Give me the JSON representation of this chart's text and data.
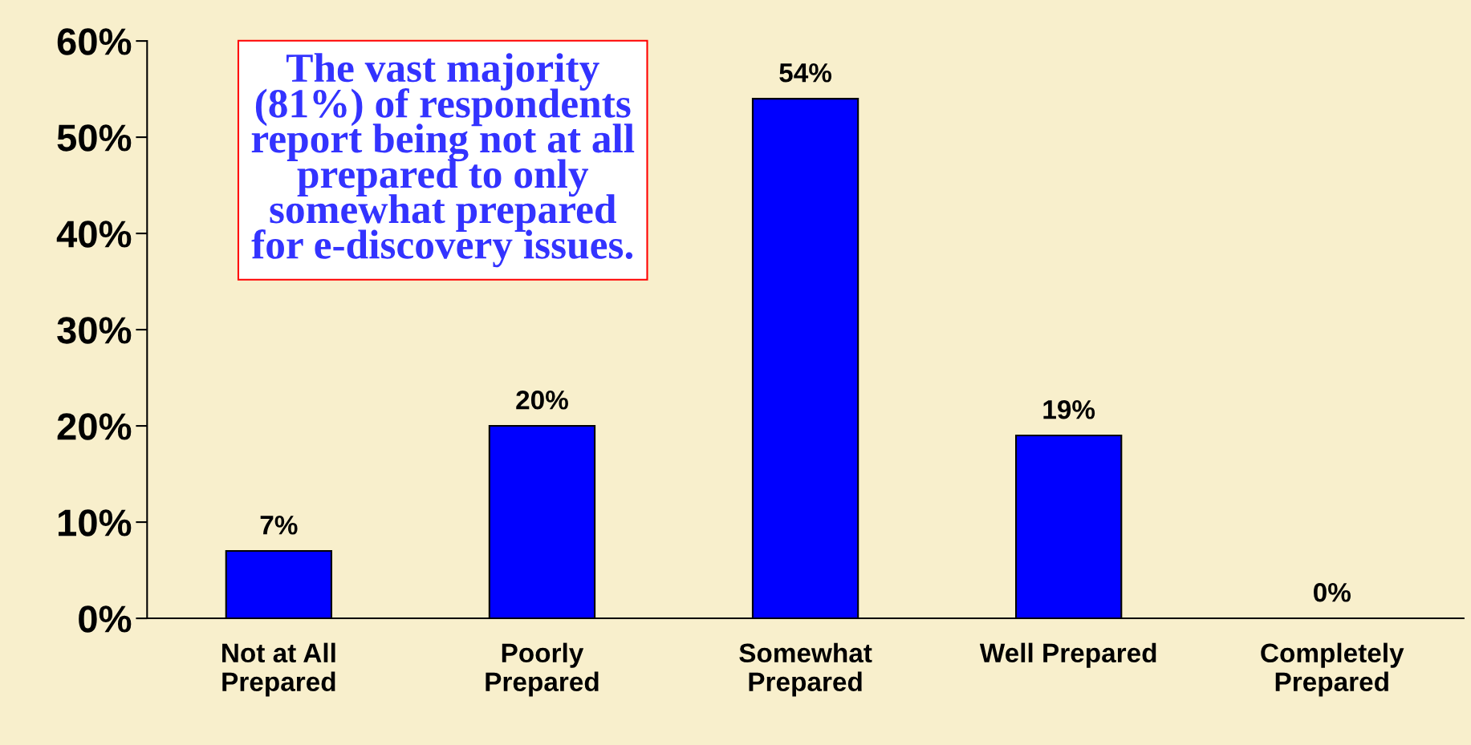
{
  "chart_data": {
    "type": "bar",
    "categories": [
      "Not at All\nPrepared",
      "Poorly\nPrepared",
      "Somewhat\nPrepared",
      "Well Prepared",
      "Completely\nPrepared"
    ],
    "values": [
      7,
      20,
      54,
      19,
      0
    ],
    "color": "#0000ff",
    "ylim": [
      0,
      60
    ],
    "yticks": [
      {
        "value": 0,
        "label": "0%"
      },
      {
        "value": 10,
        "label": "10%"
      },
      {
        "value": 20,
        "label": "20%"
      },
      {
        "value": 30,
        "label": "30%"
      },
      {
        "value": 40,
        "label": "40%"
      },
      {
        "value": 50,
        "label": "50%"
      },
      {
        "value": 60,
        "label": "60%"
      }
    ],
    "value_labels": [
      "7%",
      "20%",
      "54%",
      "19%",
      "0%"
    ],
    "annotations": [
      "The vast majority\n(81%) of respondents\nreport being not at all\nprepared to only\nsomewhat prepared\nfor e-discovery issues."
    ],
    "grid": false,
    "legend": false
  }
}
